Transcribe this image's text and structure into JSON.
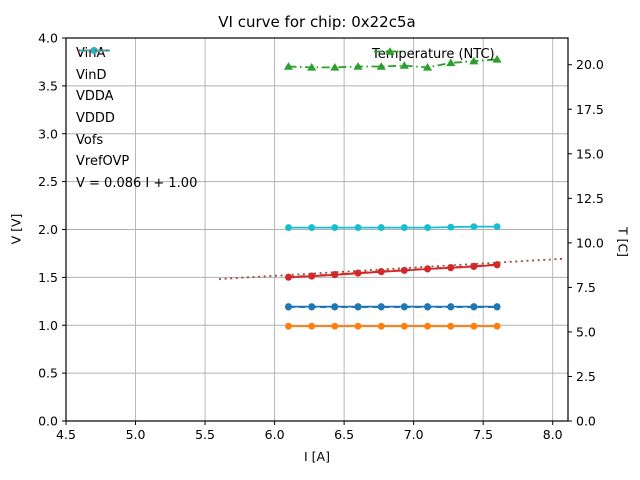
{
  "chart_data": {
    "type": "line",
    "title": "VI curve for chip: 0x22c5a",
    "xlabel": "I [A]",
    "ylabel_left": "V [V]",
    "ylabel_right": "T [C]",
    "xlim": [
      4.5,
      8.11
    ],
    "ylim_left": [
      0.0,
      4.0
    ],
    "ylim_right": [
      0.0,
      21.5
    ],
    "grid": true,
    "grid_color": "#b0b0b0",
    "axis_color": "#000000",
    "xticks": [
      4.5,
      5.0,
      5.5,
      6.0,
      6.5,
      7.0,
      7.5,
      8.0
    ],
    "xtick_labels": [
      "4.5",
      "5.0",
      "5.5",
      "6.0",
      "6.5",
      "7.0",
      "7.5",
      "8.0"
    ],
    "yticks_left": [
      0.0,
      0.5,
      1.0,
      1.5,
      2.0,
      2.5,
      3.0,
      3.5,
      4.0
    ],
    "ytick_labels_left": [
      "0.0",
      "0.5",
      "1.0",
      "1.5",
      "2.0",
      "2.5",
      "3.0",
      "3.5",
      "4.0"
    ],
    "yticks_right": [
      0.0,
      2.5,
      5.0,
      7.5,
      10.0,
      12.5,
      15.0,
      17.5,
      20.0
    ],
    "ytick_labels_right": [
      "0.0",
      "2.5",
      "5.0",
      "7.5",
      "10.0",
      "12.5",
      "15.0",
      "17.5",
      "20.0"
    ],
    "x": [
      6.1,
      6.267,
      6.433,
      6.6,
      6.767,
      6.933,
      7.1,
      7.267,
      7.433,
      7.6
    ],
    "series": [
      {
        "name": "VinA",
        "legend": "main",
        "axis": "left",
        "color": "#d62728",
        "linestyle": "solid",
        "marker": "circle",
        "values": [
          1.5,
          1.512,
          1.527,
          1.543,
          1.558,
          1.572,
          1.587,
          1.6,
          1.613,
          1.63
        ]
      },
      {
        "name": "VinD",
        "legend": "main",
        "axis": "left",
        "color": "#d62728",
        "linestyle": "dashed",
        "marker": "circle",
        "values": [
          1.504,
          1.516,
          1.531,
          1.547,
          1.562,
          1.576,
          1.591,
          1.604,
          1.617,
          1.634
        ]
      },
      {
        "name": "VDDA",
        "legend": "main",
        "axis": "left",
        "color": "#1f77b4",
        "linestyle": "solid",
        "marker": "circle",
        "values": [
          1.195,
          1.195,
          1.195,
          1.195,
          1.195,
          1.195,
          1.195,
          1.195,
          1.195,
          1.195
        ]
      },
      {
        "name": "VDDD",
        "legend": "main",
        "axis": "left",
        "color": "#1f77b4",
        "linestyle": "dashed",
        "marker": "circle",
        "values": [
          1.19,
          1.19,
          1.19,
          1.19,
          1.19,
          1.19,
          1.19,
          1.19,
          1.19,
          1.19
        ]
      },
      {
        "name": "Vofs",
        "legend": "main",
        "axis": "left",
        "color": "#ff7f0e",
        "linestyle": "solid",
        "marker": "circle",
        "values": [
          0.99,
          0.99,
          0.99,
          0.99,
          0.99,
          0.99,
          0.99,
          0.99,
          0.99,
          0.99
        ]
      },
      {
        "name": "VrefOVP",
        "legend": "main",
        "axis": "left",
        "color": "#17becf",
        "linestyle": "solid",
        "marker": "circle",
        "values": [
          2.02,
          2.02,
          2.02,
          2.02,
          2.02,
          2.02,
          2.02,
          2.025,
          2.03,
          2.03
        ]
      },
      {
        "name": "V = 0.086 I + 1.00",
        "legend": "main",
        "axis": "left",
        "color": "#9e4a3f",
        "linestyle": "dotted",
        "marker": "none",
        "x_override": [
          5.6,
          8.08
        ],
        "values": [
          1.482,
          1.695
        ]
      },
      {
        "name": "Temperature (NTC)",
        "legend": "temp",
        "axis": "right",
        "color": "#2ca02c",
        "linestyle": "dashdot",
        "marker": "triangle",
        "values": [
          19.9,
          19.85,
          19.85,
          19.9,
          19.9,
          19.95,
          19.85,
          20.1,
          20.2,
          20.3
        ]
      }
    ]
  }
}
